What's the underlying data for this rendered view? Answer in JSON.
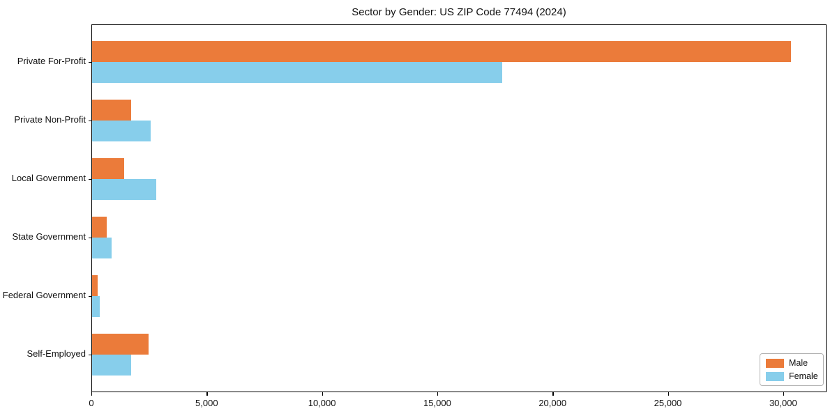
{
  "title": "Sector by Gender: US ZIP Code 77494 (2024)",
  "chart_data": {
    "type": "bar",
    "orientation": "horizontal",
    "title": "Sector by Gender: US ZIP Code 77494 (2024)",
    "xlabel": "",
    "ylabel": "",
    "categories": [
      "Private For-Profit",
      "Private Non-Profit",
      "Local Government",
      "State Government",
      "Federal Government",
      "Self-Employed"
    ],
    "series": [
      {
        "name": "Male",
        "color": "#EB7B3A",
        "values": [
          30360,
          1700,
          1390,
          640,
          240,
          2450
        ]
      },
      {
        "name": "Female",
        "color": "#87CEEB",
        "values": [
          17820,
          2540,
          2780,
          850,
          330,
          1700
        ]
      }
    ],
    "xlim": [
      0,
      31880
    ],
    "xticks": [
      0,
      5000,
      10000,
      15000,
      20000,
      25000,
      30000
    ],
    "xtick_labels": [
      "0",
      "5,000",
      "10,000",
      "15,000",
      "20,000",
      "25,000",
      "30,000"
    ],
    "grid": false,
    "legend_position": "lower right"
  },
  "colors": {
    "male": "#EB7B3A",
    "female": "#87CEEB",
    "spine": "#000000",
    "background": "#ffffff",
    "legend_border": "#b3b3b3"
  }
}
